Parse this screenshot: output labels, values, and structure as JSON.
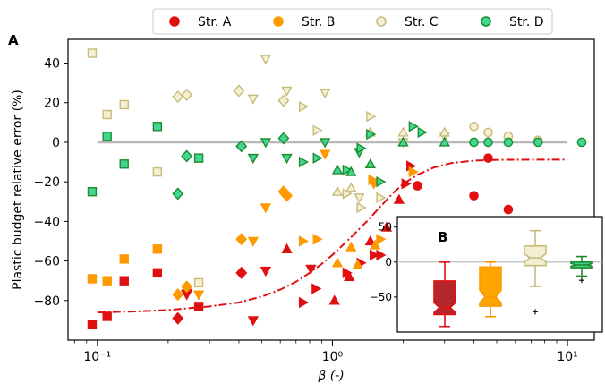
{
  "figure": {
    "legend": [
      {
        "label": "Str. A",
        "marker": "circle",
        "color": "#e11010",
        "face": "#e11010"
      },
      {
        "label": "Str. B",
        "marker": "circle",
        "color": "#ff9900",
        "face": "#ff9900"
      },
      {
        "label": "Str. C",
        "marker": "circle",
        "color": "#c9bb7a",
        "face": "#f4efd2"
      },
      {
        "label": "Str. D",
        "marker": "circle",
        "color": "#1d8c2f",
        "face": "#42d690"
      }
    ]
  },
  "chart_data": [
    {
      "panel_label": "A",
      "type": "scatter",
      "xlabel": "β (-)",
      "ylabel": "Plastic budget relative error (%)",
      "xscale": "log",
      "xlim": [
        0.075,
        13
      ],
      "ylim": [
        -100,
        52
      ],
      "xticks": [
        {
          "value": 0.1,
          "label": "10⁻¹"
        },
        {
          "value": 1,
          "label": "10⁰"
        },
        {
          "value": 10,
          "label": "10¹"
        }
      ],
      "yticks": [
        40,
        20,
        0,
        -20,
        -40,
        -60,
        -80
      ],
      "reference_line": {
        "y": 0,
        "x_range": [
          0.1,
          10
        ],
        "color": "#b8b8b8"
      },
      "fit_curve": {
        "style": "dash-dot",
        "color": "#e11010",
        "points": [
          [
            0.1,
            -86
          ],
          [
            0.15,
            -85.5
          ],
          [
            0.2,
            -84.8
          ],
          [
            0.3,
            -83
          ],
          [
            0.4,
            -81
          ],
          [
            0.5,
            -78
          ],
          [
            0.6,
            -74.5
          ],
          [
            0.7,
            -70.5
          ],
          [
            0.8,
            -66
          ],
          [
            0.9,
            -61.5
          ],
          [
            1.0,
            -57
          ],
          [
            1.2,
            -48
          ],
          [
            1.4,
            -40
          ],
          [
            1.6,
            -32.5
          ],
          [
            1.8,
            -26
          ],
          [
            2.0,
            -21
          ],
          [
            2.3,
            -16.5
          ],
          [
            2.7,
            -12.8
          ],
          [
            3.2,
            -10.5
          ],
          [
            4.0,
            -9.3
          ],
          [
            5.0,
            -8.9
          ],
          [
            7.0,
            -8.8
          ],
          [
            10.0,
            -8.8
          ]
        ]
      },
      "series": [
        {
          "name": "Str. A",
          "color": "#e11010",
          "face": "#e11010",
          "points": [
            {
              "x": 0.095,
              "y": -92,
              "m": "s"
            },
            {
              "x": 0.11,
              "y": -88,
              "m": "s"
            },
            {
              "x": 0.13,
              "y": -70,
              "m": "s"
            },
            {
              "x": 0.18,
              "y": -66,
              "m": "s"
            },
            {
              "x": 0.27,
              "y": -83,
              "m": "s"
            },
            {
              "x": 0.22,
              "y": -89,
              "m": "d"
            },
            {
              "x": 0.24,
              "y": -75,
              "m": "d"
            },
            {
              "x": 0.41,
              "y": -66,
              "m": "d"
            },
            {
              "x": 0.24,
              "y": -77,
              "m": "v"
            },
            {
              "x": 0.46,
              "y": -90,
              "m": "v"
            },
            {
              "x": 0.52,
              "y": -65,
              "m": "v"
            },
            {
              "x": 0.81,
              "y": -64,
              "m": "v"
            },
            {
              "x": 0.64,
              "y": -54,
              "m": "^"
            },
            {
              "x": 1.02,
              "y": -80,
              "m": "^"
            },
            {
              "x": 1.18,
              "y": -68,
              "m": "^"
            },
            {
              "x": 1.45,
              "y": -50,
              "m": "^"
            },
            {
              "x": 1.7,
              "y": -43,
              "m": "^"
            },
            {
              "x": 1.92,
              "y": -29,
              "m": "^"
            },
            {
              "x": 0.75,
              "y": -81,
              "m": ">"
            },
            {
              "x": 0.85,
              "y": -74,
              "m": ">"
            },
            {
              "x": 1.15,
              "y": -66,
              "m": ">"
            },
            {
              "x": 1.32,
              "y": -61,
              "m": ">"
            },
            {
              "x": 1.5,
              "y": -57,
              "m": ">"
            },
            {
              "x": 1.6,
              "y": -57,
              "m": ">"
            },
            {
              "x": 2.05,
              "y": -21,
              "m": ">"
            },
            {
              "x": 2.15,
              "y": -12,
              "m": ">"
            },
            {
              "x": 2.3,
              "y": -22,
              "m": "o"
            },
            {
              "x": 4.0,
              "y": -27,
              "m": "o"
            },
            {
              "x": 4.6,
              "y": -8,
              "m": "o"
            },
            {
              "x": 5.6,
              "y": -34,
              "m": "o"
            }
          ]
        },
        {
          "name": "Str. B",
          "color": "#ff9900",
          "face": "#ff9900",
          "points": [
            {
              "x": 0.095,
              "y": -69,
              "m": "s"
            },
            {
              "x": 0.11,
              "y": -70,
              "m": "s"
            },
            {
              "x": 0.13,
              "y": -59,
              "m": "s"
            },
            {
              "x": 0.18,
              "y": -54,
              "m": "s"
            },
            {
              "x": 0.22,
              "y": -77,
              "m": "d"
            },
            {
              "x": 0.24,
              "y": -73,
              "m": "d"
            },
            {
              "x": 0.41,
              "y": -49,
              "m": "d"
            },
            {
              "x": 0.62,
              "y": -25,
              "m": "d"
            },
            {
              "x": 0.64,
              "y": -27,
              "m": "d"
            },
            {
              "x": 0.27,
              "y": -77,
              "m": "v"
            },
            {
              "x": 0.46,
              "y": -50,
              "m": "v"
            },
            {
              "x": 0.52,
              "y": -33,
              "m": "v"
            },
            {
              "x": 0.93,
              "y": -6,
              "m": "v"
            },
            {
              "x": 1.5,
              "y": -21,
              "m": "v"
            },
            {
              "x": 1.05,
              "y": -61,
              "m": "^"
            },
            {
              "x": 1.2,
              "y": -53,
              "m": "^"
            },
            {
              "x": 1.28,
              "y": -62,
              "m": "^"
            },
            {
              "x": 1.52,
              "y": -52,
              "m": "^"
            },
            {
              "x": 0.75,
              "y": -50,
              "m": ">"
            },
            {
              "x": 0.86,
              "y": -49,
              "m": ">"
            },
            {
              "x": 1.48,
              "y": -19,
              "m": ">"
            },
            {
              "x": 1.6,
              "y": -49,
              "m": ">"
            },
            {
              "x": 2.2,
              "y": -15,
              "m": ">"
            }
          ]
        },
        {
          "name": "Str. C",
          "color": "#c9bb7a",
          "face": "#f4efd2",
          "points": [
            {
              "x": 0.095,
              "y": 45,
              "m": "s"
            },
            {
              "x": 0.11,
              "y": 14,
              "m": "s"
            },
            {
              "x": 0.13,
              "y": 19,
              "m": "s"
            },
            {
              "x": 0.18,
              "y": -15,
              "m": "s"
            },
            {
              "x": 0.27,
              "y": -71,
              "m": "s"
            },
            {
              "x": 0.22,
              "y": 23,
              "m": "d"
            },
            {
              "x": 0.24,
              "y": 24,
              "m": "d"
            },
            {
              "x": 0.4,
              "y": 26,
              "m": "d"
            },
            {
              "x": 0.62,
              "y": 21,
              "m": "d"
            },
            {
              "x": 0.46,
              "y": 22,
              "m": "v"
            },
            {
              "x": 0.52,
              "y": 42,
              "m": "v"
            },
            {
              "x": 0.64,
              "y": 26,
              "m": "v"
            },
            {
              "x": 0.93,
              "y": 25,
              "m": "v"
            },
            {
              "x": 1.3,
              "y": -28,
              "m": "v"
            },
            {
              "x": 2.0,
              "y": 0,
              "m": "v"
            },
            {
              "x": 3.0,
              "y": 3,
              "m": "v"
            },
            {
              "x": 0.75,
              "y": 18,
              "m": ">"
            },
            {
              "x": 0.86,
              "y": 6,
              "m": ">"
            },
            {
              "x": 1.15,
              "y": -26,
              "m": ">"
            },
            {
              "x": 1.32,
              "y": -33,
              "m": ">"
            },
            {
              "x": 1.45,
              "y": 13,
              "m": ">"
            },
            {
              "x": 1.6,
              "y": -28,
              "m": ">"
            },
            {
              "x": 1.05,
              "y": -25,
              "m": "^"
            },
            {
              "x": 1.2,
              "y": -23,
              "m": "^"
            },
            {
              "x": 1.45,
              "y": 5,
              "m": "^"
            },
            {
              "x": 2.0,
              "y": 5,
              "m": "^"
            },
            {
              "x": 3.0,
              "y": 5,
              "m": "^"
            },
            {
              "x": 4.0,
              "y": 8,
              "m": "o"
            },
            {
              "x": 4.6,
              "y": 5,
              "m": "o"
            },
            {
              "x": 5.6,
              "y": 3,
              "m": "o"
            },
            {
              "x": 7.5,
              "y": 1,
              "m": "o"
            }
          ]
        },
        {
          "name": "Str. D",
          "color": "#1d8c2f",
          "face": "#42d690",
          "points": [
            {
              "x": 0.095,
              "y": -25,
              "m": "s"
            },
            {
              "x": 0.11,
              "y": 3,
              "m": "s"
            },
            {
              "x": 0.13,
              "y": -11,
              "m": "s"
            },
            {
              "x": 0.18,
              "y": 8,
              "m": "s"
            },
            {
              "x": 0.27,
              "y": -8,
              "m": "s"
            },
            {
              "x": 0.22,
              "y": -26,
              "m": "d"
            },
            {
              "x": 0.24,
              "y": -7,
              "m": "d"
            },
            {
              "x": 0.41,
              "y": -2,
              "m": "d"
            },
            {
              "x": 0.62,
              "y": 2,
              "m": "d"
            },
            {
              "x": 0.46,
              "y": -8,
              "m": "v"
            },
            {
              "x": 0.52,
              "y": 0,
              "m": "v"
            },
            {
              "x": 0.64,
              "y": -8,
              "m": "v"
            },
            {
              "x": 0.93,
              "y": 0,
              "m": "v"
            },
            {
              "x": 1.3,
              "y": -5,
              "m": "v"
            },
            {
              "x": 0.75,
              "y": -10,
              "m": ">"
            },
            {
              "x": 0.86,
              "y": -8,
              "m": ">"
            },
            {
              "x": 1.15,
              "y": -14,
              "m": ">"
            },
            {
              "x": 1.32,
              "y": -3,
              "m": ">"
            },
            {
              "x": 1.45,
              "y": 4,
              "m": ">"
            },
            {
              "x": 1.6,
              "y": -20,
              "m": ">"
            },
            {
              "x": 2.2,
              "y": 8,
              "m": ">"
            },
            {
              "x": 2.4,
              "y": 5,
              "m": ">"
            },
            {
              "x": 1.05,
              "y": -14,
              "m": "^"
            },
            {
              "x": 1.2,
              "y": -15,
              "m": "^"
            },
            {
              "x": 1.45,
              "y": -11,
              "m": "^"
            },
            {
              "x": 2.0,
              "y": 0,
              "m": "^"
            },
            {
              "x": 3.0,
              "y": 0,
              "m": "^"
            },
            {
              "x": 4.0,
              "y": 0,
              "m": "o"
            },
            {
              "x": 4.6,
              "y": 0,
              "m": "o"
            },
            {
              "x": 5.6,
              "y": 0,
              "m": "o"
            },
            {
              "x": 7.5,
              "y": 0,
              "m": "o"
            },
            {
              "x": 11.5,
              "y": 0,
              "m": "o"
            }
          ]
        }
      ]
    },
    {
      "panel_label": "B",
      "type": "boxplot",
      "ylim": [
        -100,
        65
      ],
      "yticks": [
        50,
        0,
        -50
      ],
      "reference_line": {
        "y": 0
      },
      "boxes": [
        {
          "name": "Str. A",
          "color": "#e11010",
          "face": "#b5262c",
          "whisker_low": -92,
          "q1": -75,
          "notch_low": -72,
          "median": -65,
          "notch_high": -58,
          "q3": -27,
          "whisker_high": 0,
          "outliers": []
        },
        {
          "name": "Str. B",
          "color": "#ff9900",
          "face": "#ffa500",
          "whisker_low": -78,
          "q1": -63,
          "notch_low": -58,
          "median": -50,
          "notch_high": -40,
          "q3": -7,
          "whisker_high": 0,
          "outliers": []
        },
        {
          "name": "Str. C",
          "color": "#c9bb7a",
          "face": "#f4efd2",
          "whisker_low": -35,
          "q1": -5,
          "notch_low": 0,
          "median": 6,
          "notch_high": 12,
          "q3": 23,
          "whisker_high": 45,
          "outliers": [
            -71
          ]
        },
        {
          "name": "Str. D",
          "color": "#1d8c2f",
          "face": "#3fd28e",
          "whisker_low": -20,
          "q1": -8,
          "notch_low": -6,
          "median": -4,
          "notch_high": -2,
          "q3": 0,
          "whisker_high": 8,
          "outliers": [
            -26
          ]
        }
      ]
    }
  ]
}
